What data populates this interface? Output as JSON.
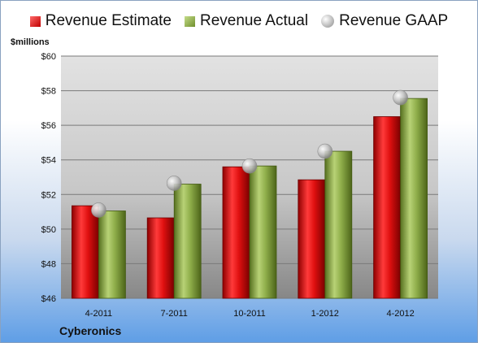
{
  "chart_data": {
    "type": "bar",
    "categories": [
      "4-2011",
      "7-2011",
      "10-2011",
      "1-2012",
      "4-2012"
    ],
    "series": [
      {
        "name": "Revenue Estimate",
        "type": "bar",
        "values": [
          51.35,
          50.65,
          53.6,
          52.85,
          56.5
        ],
        "color": "#d01818"
      },
      {
        "name": "Revenue Actual",
        "type": "bar",
        "values": [
          51.05,
          52.6,
          53.65,
          54.5,
          57.55
        ],
        "color": "#8fae4a"
      },
      {
        "name": "Revenue GAAP",
        "type": "marker",
        "values": [
          51.1,
          52.65,
          53.65,
          54.5,
          57.6
        ],
        "color": "#b8b8b8"
      }
    ],
    "ylabel": "$millions",
    "ylim": [
      46,
      60
    ],
    "yticks": [
      46,
      48,
      50,
      52,
      54,
      56,
      58,
      60
    ],
    "ytick_labels": [
      "$46",
      "$48",
      "$50",
      "$52",
      "$54",
      "$56",
      "$58",
      "$60"
    ],
    "grid": true,
    "legend_position": "top"
  },
  "company": "Cyberonics"
}
